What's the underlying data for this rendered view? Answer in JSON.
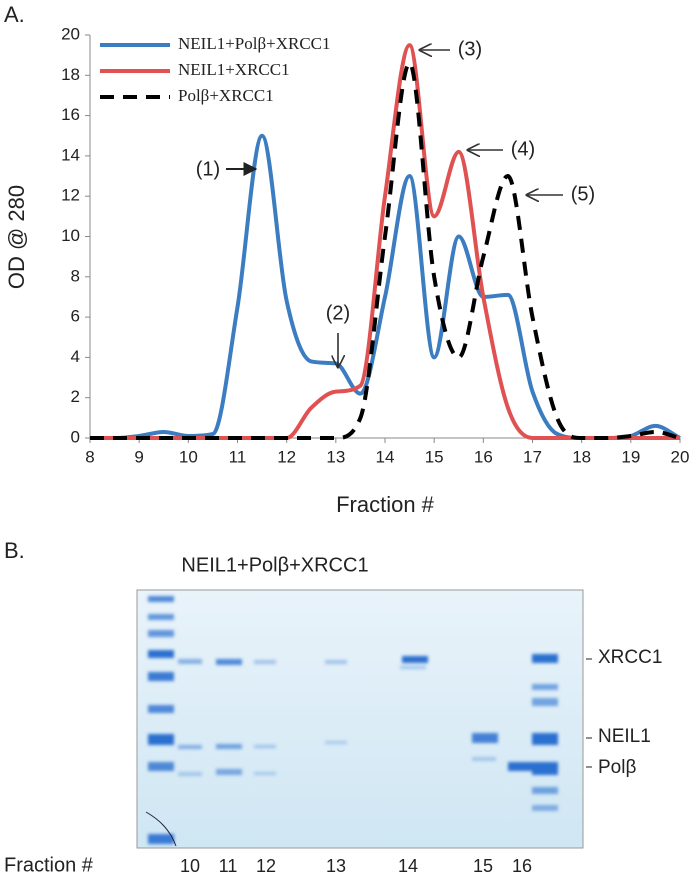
{
  "panel_a_label": "A.",
  "chart_data": {
    "type": "line",
    "x": [
      8,
      8.5,
      9,
      9.5,
      10,
      10.5,
      11,
      11.5,
      12,
      12.5,
      13,
      13.5,
      14,
      14.5,
      15,
      15.5,
      16,
      16.5,
      17,
      17.5,
      18,
      18.5,
      19,
      19.5,
      20
    ],
    "series": [
      {
        "name": "NEIL1+Polβ+XRCC1",
        "color": "#3b7dc0",
        "dash": false,
        "values": [
          0,
          0,
          0.1,
          0.3,
          0.1,
          0.2,
          6.5,
          15,
          6.8,
          3.8,
          3.7,
          2.2,
          7,
          13,
          4,
          10,
          7,
          7.1,
          2.3,
          0.2,
          0,
          0,
          0.1,
          0.6,
          0
        ]
      },
      {
        "name": "NEIL1+XRCC1",
        "color": "#e05252",
        "dash": false,
        "values": [
          0,
          0,
          0,
          0,
          0,
          0,
          0,
          0,
          0,
          1.5,
          2.3,
          2.6,
          12,
          19.5,
          11,
          14.2,
          7,
          1.5,
          0,
          0,
          0,
          0,
          0,
          0,
          0
        ]
      },
      {
        "name": "Polβ+XRCC1",
        "color": "#000000",
        "dash": true,
        "values": [
          0,
          0,
          0,
          0,
          0,
          0,
          0,
          0,
          0,
          0,
          0,
          1,
          10,
          18.6,
          8,
          4,
          9,
          13,
          6,
          1,
          0,
          0,
          0.1,
          0.3,
          0
        ]
      }
    ],
    "xlabel": "Fraction #",
    "ylabel": "OD @ 280",
    "xlim": [
      8,
      20
    ],
    "xticks": [
      8,
      9,
      10,
      11,
      12,
      13,
      14,
      15,
      16,
      17,
      18,
      19,
      20
    ],
    "ylim": [
      0,
      20
    ],
    "yticks": [
      0,
      2,
      4,
      6,
      8,
      10,
      12,
      14,
      16,
      18,
      20
    ],
    "legend": "upper-left",
    "annotations": [
      "(1)",
      "(2)",
      "(3)",
      "(4)",
      "(5)"
    ]
  },
  "panel_b": {
    "label": "B.",
    "title": "NEIL1+Polβ+XRCC1",
    "band_labels": [
      "XRCC1",
      "NEIL1",
      "Polβ"
    ],
    "lane_axis_label": "Fraction #",
    "lanes": [
      "10",
      "11",
      "12",
      "13",
      "14",
      "15",
      "16"
    ]
  }
}
